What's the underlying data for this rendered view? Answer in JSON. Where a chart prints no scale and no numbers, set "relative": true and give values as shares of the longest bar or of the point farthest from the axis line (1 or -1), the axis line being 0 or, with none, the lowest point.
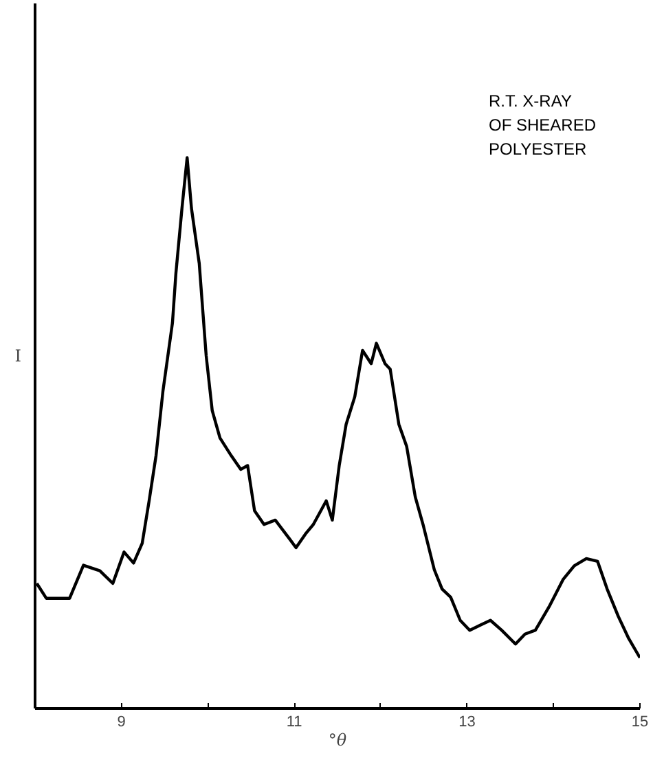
{
  "chart_data": {
    "type": "line",
    "title": "R.T. X-RAY\nOF SHEARED\nPOLYESTER",
    "xlabel": "°θ",
    "ylabel": "I",
    "relative": true,
    "grid": false,
    "marker": "none",
    "line_style": "solid",
    "xlim": [
      8,
      15
    ],
    "xticks": [
      9,
      {
        "value": 10,
        "label": null
      },
      11,
      {
        "value": 12,
        "label": null
      },
      13,
      {
        "value": 14,
        "label": null
      },
      15
    ],
    "series": [
      {
        "color": "#000000",
        "x": [
          8.02,
          8.13,
          8.4,
          8.56,
          8.75,
          8.9,
          9.03,
          9.14,
          9.24,
          9.32,
          9.4,
          9.48,
          9.59,
          9.63,
          9.7,
          9.76,
          9.81,
          9.9,
          9.98,
          10.05,
          10.14,
          10.27,
          10.38,
          10.46,
          10.54,
          10.65,
          10.78,
          10.94,
          11.02,
          11.13,
          11.22,
          11.37,
          11.44,
          11.52,
          11.6,
          11.7,
          11.79,
          11.89,
          11.95,
          12.05,
          12.11,
          12.21,
          12.3,
          12.4,
          12.49,
          12.62,
          12.71,
          12.81,
          12.92,
          13.03,
          13.16,
          13.27,
          13.4,
          13.56,
          13.67,
          13.79,
          13.95,
          14.11,
          14.24,
          14.38,
          14.51,
          14.62,
          14.75,
          14.87,
          15.0
        ],
        "values": [
          0.227,
          0.2,
          0.2,
          0.26,
          0.25,
          0.227,
          0.284,
          0.264,
          0.3,
          0.377,
          0.459,
          0.576,
          0.7,
          0.79,
          0.908,
          1.0,
          0.908,
          0.808,
          0.641,
          0.541,
          0.491,
          0.459,
          0.434,
          0.441,
          0.359,
          0.334,
          0.342,
          0.309,
          0.292,
          0.317,
          0.334,
          0.377,
          0.342,
          0.441,
          0.516,
          0.566,
          0.65,
          0.626,
          0.663,
          0.626,
          0.616,
          0.516,
          0.476,
          0.384,
          0.334,
          0.252,
          0.217,
          0.202,
          0.16,
          0.142,
          0.152,
          0.16,
          0.142,
          0.117,
          0.135,
          0.142,
          0.185,
          0.234,
          0.259,
          0.272,
          0.267,
          0.217,
          0.167,
          0.127,
          0.092
        ]
      }
    ]
  }
}
